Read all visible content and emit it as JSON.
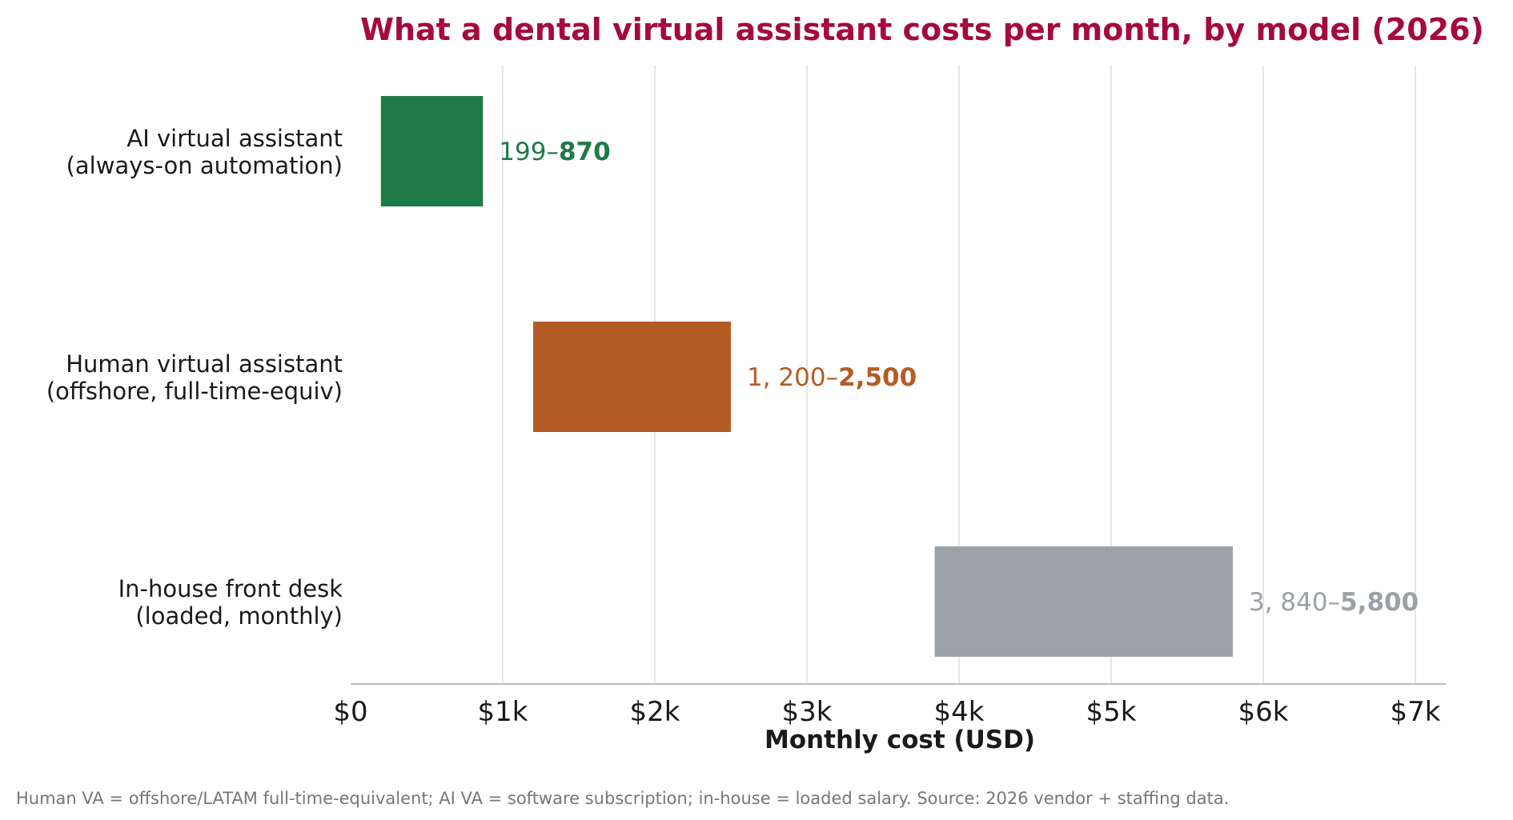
{
  "chart_data": {
    "type": "bar",
    "orientation": "horizontal",
    "style": "range",
    "title": "What a dental virtual assistant costs per month, by model (2026)",
    "xlabel": "Monthly cost (USD)",
    "ylabel": "",
    "xlim": [
      0,
      7200
    ],
    "x_ticks": [
      0,
      1000,
      2000,
      3000,
      4000,
      5000,
      6000,
      7000
    ],
    "x_tick_labels": [
      "$0",
      "$1k",
      "$2k",
      "$3k",
      "$4k",
      "$5k",
      "$6k",
      "$7k"
    ],
    "grid": "vertical",
    "categories": [
      [
        "AI virtual assistant",
        "(always-on automation)"
      ],
      [
        "Human virtual assistant",
        "(offshore, full-time-equiv)"
      ],
      [
        "In-house front desk",
        "(loaded, monthly)"
      ]
    ],
    "series": [
      {
        "low": [
          199,
          1200,
          3840
        ],
        "high": [
          870,
          2500,
          5800
        ]
      }
    ],
    "data_labels": [
      {
        "low_text": "199–",
        "high_text": "870"
      },
      {
        "low_text": "1, 200–",
        "high_text": "2,500"
      },
      {
        "low_text": "3, 840–",
        "high_text": "5,800"
      }
    ],
    "colors": [
      "#1f7a47",
      "#b45c25",
      "#9ca0a7"
    ],
    "title_color": "#a50a3c",
    "footnote": "Human VA = offshore/LATAM full-time-equivalent; AI VA = software subscription; in-house = loaded salary. Source: 2026 vendor + staffing data."
  }
}
